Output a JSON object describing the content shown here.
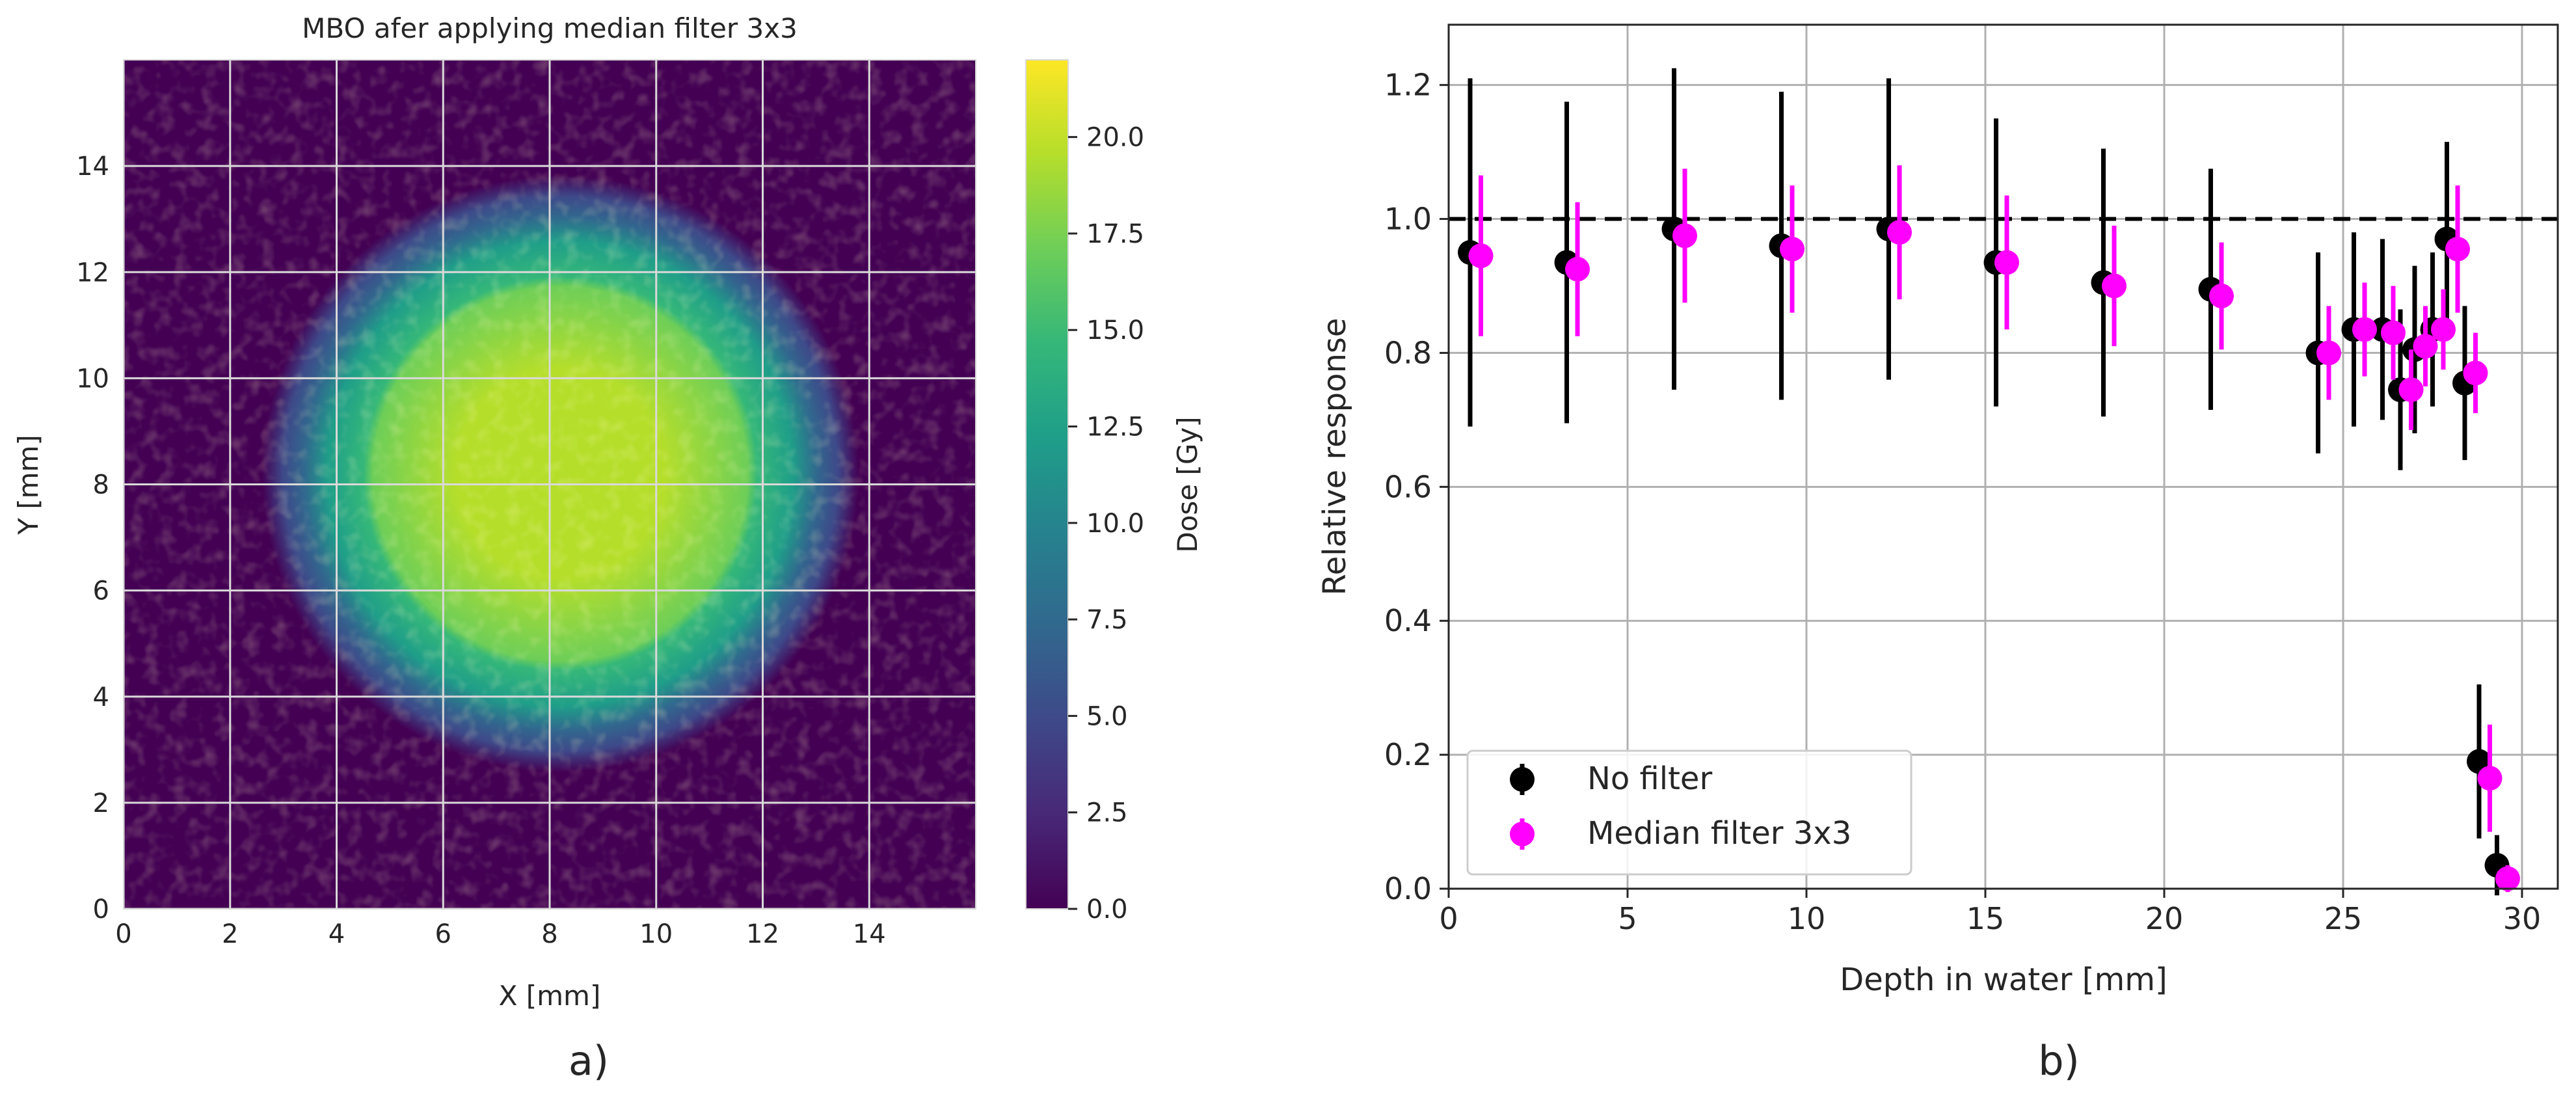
{
  "figure_labels": {
    "a": "a)",
    "b": "b)"
  },
  "chart_data": [
    {
      "type": "heatmap",
      "title": "MBO afer applying median filter 3x3",
      "xlabel": "X [mm]",
      "ylabel": "Y [mm]",
      "xlim": [
        0,
        16
      ],
      "ylim": [
        0,
        16
      ],
      "xticks": [
        0,
        2,
        4,
        6,
        8,
        10,
        12,
        14
      ],
      "yticks": [
        0,
        2,
        4,
        6,
        8,
        10,
        12,
        14
      ],
      "grid": true,
      "colormap": "viridis",
      "beam": {
        "center_x": 8.2,
        "center_y": 8.2,
        "flat_radius": 3.7,
        "edge_radius": 5.6,
        "peak_dose": 19.5,
        "background_dose": 0.6
      },
      "colorbar": {
        "label": "Dose [Gy]",
        "range": [
          0,
          22
        ],
        "ticks": [
          0.0,
          2.5,
          5.0,
          7.5,
          10.0,
          12.5,
          15.0,
          17.5,
          20.0
        ],
        "tick_labels": [
          "0.0",
          "2.5",
          "5.0",
          "7.5",
          "10.0",
          "12.5",
          "15.0",
          "17.5",
          "20.0"
        ],
        "colors": [
          "#440154",
          "#482878",
          "#3e4989",
          "#31688e",
          "#26828e",
          "#1f9e89",
          "#35b779",
          "#6ece58",
          "#b5de2b",
          "#fde725"
        ]
      }
    },
    {
      "type": "scatter",
      "xlabel": "Depth in water [mm]",
      "ylabel": "Relative response",
      "xlim": [
        0,
        31
      ],
      "ylim": [
        0,
        1.29
      ],
      "xticks": [
        0,
        5,
        10,
        15,
        20,
        25,
        30
      ],
      "yticks": [
        0.0,
        0.2,
        0.4,
        0.6,
        0.8,
        1.0,
        1.2
      ],
      "ytick_labels": [
        "0.0",
        "0.2",
        "0.4",
        "0.6",
        "0.8",
        "1.0",
        "1.2"
      ],
      "grid": true,
      "reference_line": 1.0,
      "legend_position": "lower-left",
      "series": [
        {
          "name": "No filter",
          "color": "#000000",
          "x": [
            0.6,
            3.3,
            6.3,
            9.3,
            12.3,
            15.3,
            18.3,
            21.3,
            24.3,
            25.3,
            26.1,
            26.6,
            27.0,
            27.5,
            27.9,
            28.4,
            28.8,
            29.3
          ],
          "y": [
            0.95,
            0.935,
            0.985,
            0.96,
            0.985,
            0.935,
            0.905,
            0.895,
            0.8,
            0.835,
            0.835,
            0.745,
            0.805,
            0.835,
            0.97,
            0.755,
            0.19,
            0.035
          ],
          "err": [
            0.26,
            0.24,
            0.24,
            0.23,
            0.225,
            0.215,
            0.2,
            0.18,
            0.15,
            0.145,
            0.135,
            0.12,
            0.125,
            0.115,
            0.145,
            0.115,
            0.115,
            0.045
          ]
        },
        {
          "name": "Median filter 3x3",
          "color": "#ff00ff",
          "x": [
            0.9,
            3.6,
            6.6,
            9.6,
            12.6,
            15.6,
            18.6,
            21.6,
            24.6,
            25.6,
            26.4,
            26.9,
            27.3,
            27.8,
            28.2,
            28.7,
            29.1,
            29.6
          ],
          "y": [
            0.945,
            0.925,
            0.975,
            0.955,
            0.98,
            0.935,
            0.9,
            0.885,
            0.8,
            0.835,
            0.83,
            0.745,
            0.81,
            0.835,
            0.955,
            0.77,
            0.165,
            0.015
          ],
          "err": [
            0.12,
            0.1,
            0.1,
            0.095,
            0.1,
            0.1,
            0.09,
            0.08,
            0.07,
            0.07,
            0.07,
            0.06,
            0.06,
            0.06,
            0.095,
            0.06,
            0.08,
            0.02
          ]
        }
      ]
    }
  ]
}
